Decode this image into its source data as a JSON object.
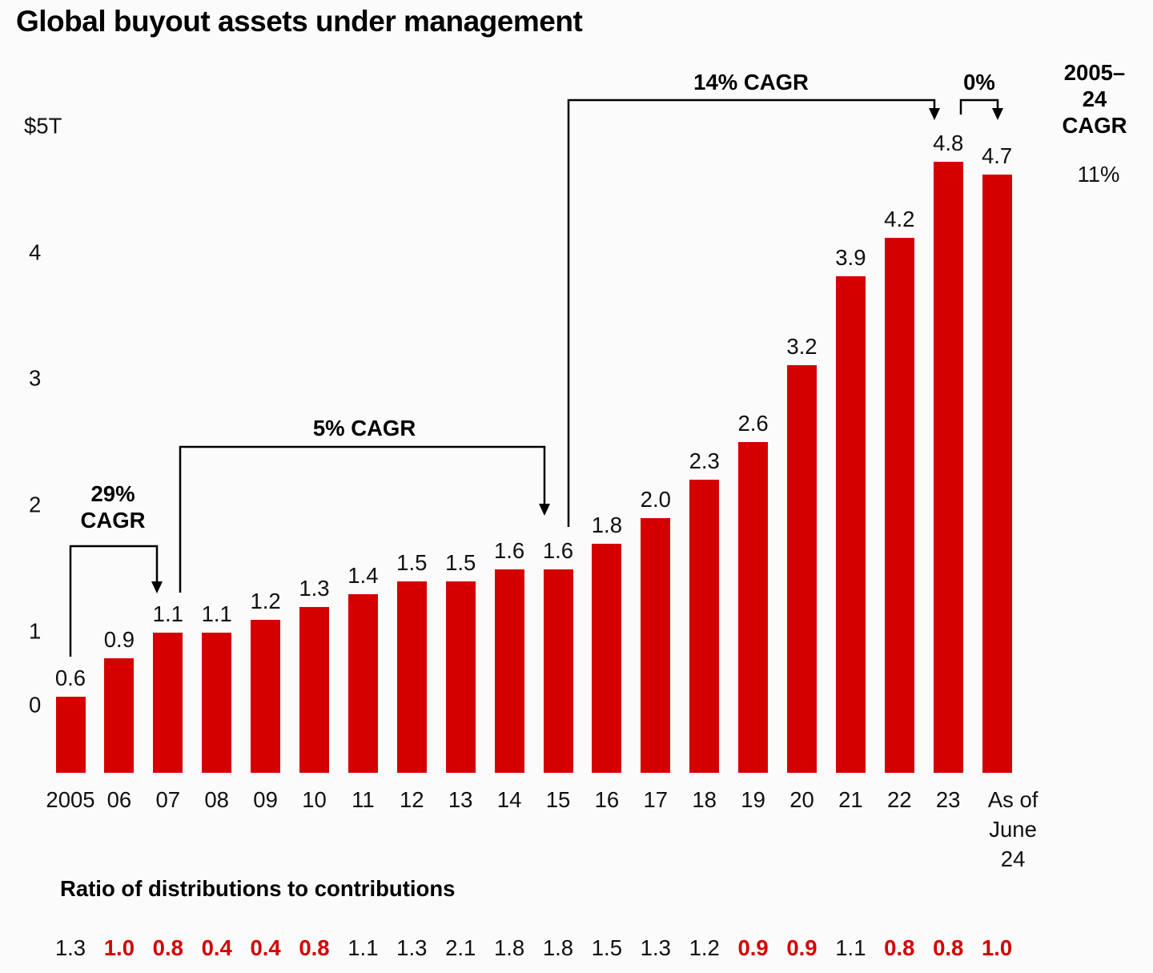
{
  "title": "Global buyout assets under management",
  "chart_data": {
    "type": "bar",
    "title": "Global buyout assets under management",
    "unit": "$ trillions",
    "categories": [
      "2005",
      "06",
      "07",
      "08",
      "09",
      "10",
      "11",
      "12",
      "13",
      "14",
      "15",
      "16",
      "17",
      "18",
      "19",
      "20",
      "21",
      "22",
      "23",
      "As of June 24"
    ],
    "x_labels": [
      "2005",
      "06",
      "07",
      "08",
      "09",
      "10",
      "11",
      "12",
      "13",
      "14",
      "15",
      "16",
      "17",
      "18",
      "19",
      "20",
      "21",
      "22",
      "23",
      "As of\nJune\n24"
    ],
    "values": [
      0.6,
      0.9,
      1.1,
      1.1,
      1.2,
      1.3,
      1.4,
      1.5,
      1.5,
      1.6,
      1.6,
      1.8,
      2.0,
      2.3,
      2.6,
      3.2,
      3.9,
      4.2,
      4.8,
      4.7
    ],
    "bar_labels": [
      "0.6",
      "0.9",
      "1.1",
      "1.1",
      "1.2",
      "1.3",
      "1.4",
      "1.5",
      "1.5",
      "1.6",
      "1.6",
      "1.8",
      "2.0",
      "2.3",
      "2.6",
      "3.2",
      "3.9",
      "4.2",
      "4.8",
      "4.7"
    ],
    "y_ticks": [
      "$5T",
      "4",
      "3",
      "2",
      "1",
      "0"
    ],
    "ylim": [
      0,
      5
    ],
    "grid": false,
    "legend": false,
    "bar_color": "#d40000",
    "annotations": [
      {
        "label": "29%\nCAGR",
        "span": [
          "2005",
          "07"
        ]
      },
      {
        "label": "5% CAGR",
        "span": [
          "07",
          "15"
        ]
      },
      {
        "label": "14% CAGR",
        "span": [
          "15",
          "23"
        ]
      },
      {
        "label": "0%",
        "span": [
          "23",
          "As of June 24"
        ]
      },
      {
        "label": "2005–24\nCAGR",
        "value": "11%"
      }
    ],
    "ratio_row": {
      "heading": "Ratio of distributions to contributions",
      "values": [
        "1.3",
        "1.0",
        "0.8",
        "0.4",
        "0.4",
        "0.8",
        "1.1",
        "1.3",
        "2.1",
        "1.8",
        "1.8",
        "1.5",
        "1.3",
        "1.2",
        "0.9",
        "0.9",
        "1.1",
        "0.8",
        "0.8",
        "1.0"
      ],
      "highlighted": [
        false,
        true,
        true,
        true,
        true,
        true,
        false,
        false,
        false,
        false,
        false,
        false,
        false,
        false,
        true,
        true,
        false,
        true,
        true,
        true
      ],
      "highlight_color": "#d40000"
    }
  }
}
